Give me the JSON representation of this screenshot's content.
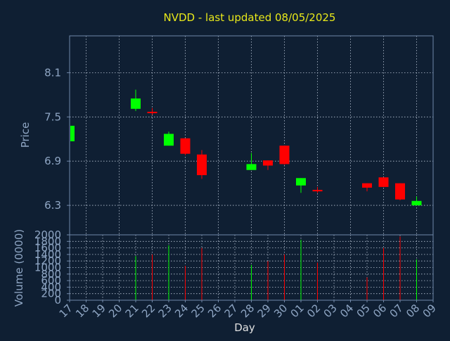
{
  "chart_data": {
    "type": "candlestick",
    "title": "NVDD - last updated 08/05/2025",
    "ticker": "NVDD",
    "xlabel": "Day",
    "price_panel": {
      "ylabel": "Price",
      "ylim": [
        5.9,
        8.6
      ],
      "yticks": [
        "6.3",
        "6.9",
        "7.5",
        "8.1"
      ],
      "grid": true
    },
    "volume_panel": {
      "ylabel": "Volume (0000)",
      "ylim": [
        0,
        2000
      ],
      "yticks": [
        "0",
        "200",
        "400",
        "600",
        "800",
        "1000",
        "1200",
        "1400",
        "1600",
        "1800",
        "2000"
      ],
      "grid": true
    },
    "x_ticks": [
      "17",
      "18",
      "19",
      "20",
      "21",
      "22",
      "23",
      "24",
      "25",
      "26",
      "27",
      "28",
      "29",
      "30",
      "01",
      "02",
      "03",
      "04",
      "05",
      "06",
      "07",
      "08",
      "09"
    ],
    "colors": {
      "background": "#0f1f33",
      "axes": "#6f87a8",
      "grid": "#b8c4d4",
      "text": "#8fa6c4",
      "title": "#e8e81a",
      "up": "#00ff00",
      "down": "#ff0000"
    },
    "candles": [
      {
        "day": "17",
        "open": 7.17,
        "close": 7.38,
        "high": 7.38,
        "low": 7.17,
        "volume": 0
      },
      {
        "day": "21",
        "open": 7.61,
        "close": 7.75,
        "high": 7.87,
        "low": 7.58,
        "volume": 1350
      },
      {
        "day": "22",
        "open": 7.57,
        "close": 7.56,
        "high": 7.62,
        "low": 7.53,
        "volume": 1400
      },
      {
        "day": "23",
        "open": 7.11,
        "close": 7.27,
        "high": 7.3,
        "low": 7.11,
        "volume": 1680
      },
      {
        "day": "24",
        "open": 7.21,
        "close": 7.0,
        "high": 7.21,
        "low": 6.98,
        "volume": 1050
      },
      {
        "day": "25",
        "open": 6.99,
        "close": 6.71,
        "high": 7.05,
        "low": 6.66,
        "volume": 1600
      },
      {
        "day": "28",
        "open": 6.78,
        "close": 6.86,
        "high": 7.01,
        "low": 6.78,
        "volume": 1080
      },
      {
        "day": "29",
        "open": 6.91,
        "close": 6.84,
        "high": 6.91,
        "low": 6.78,
        "volume": 1200
      },
      {
        "day": "30",
        "open": 7.11,
        "close": 6.86,
        "high": 7.11,
        "low": 6.85,
        "volume": 1400
      },
      {
        "day": "01",
        "open": 6.57,
        "close": 6.67,
        "high": 6.67,
        "low": 6.47,
        "volume": 1850
      },
      {
        "day": "02",
        "open": 6.51,
        "close": 6.49,
        "high": 6.55,
        "low": 6.47,
        "volume": 1150
      },
      {
        "day": "05",
        "open": 6.6,
        "close": 6.54,
        "high": 6.6,
        "low": 6.49,
        "volume": 700
      },
      {
        "day": "06",
        "open": 6.68,
        "close": 6.55,
        "high": 6.68,
        "low": 6.55,
        "volume": 1600
      },
      {
        "day": "07",
        "open": 6.6,
        "close": 6.38,
        "high": 6.6,
        "low": 6.37,
        "volume": 1950
      },
      {
        "day": "08",
        "open": 6.3,
        "close": 6.36,
        "high": 6.42,
        "low": 6.3,
        "volume": 1250
      }
    ]
  }
}
